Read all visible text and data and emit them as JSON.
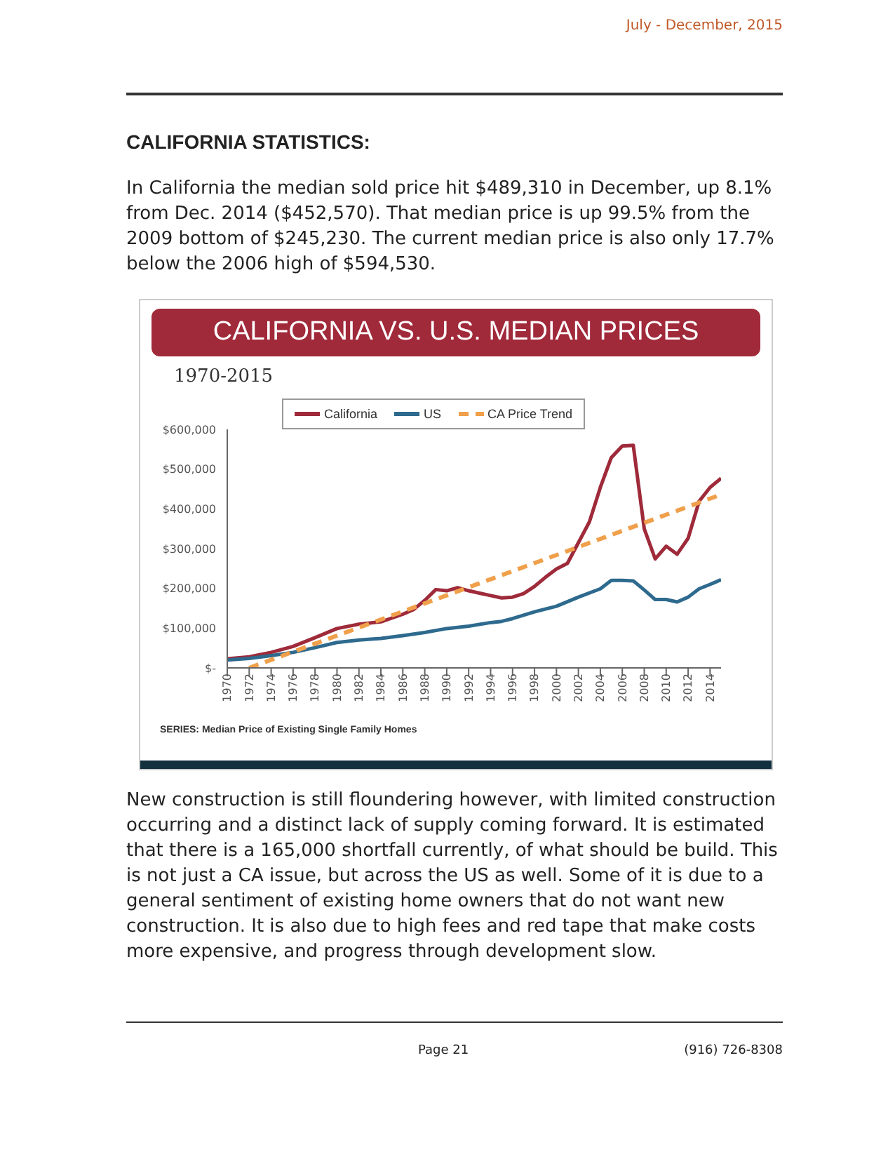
{
  "chart_data": {
    "type": "line",
    "title": "CALIFORNIA VS. U.S. MEDIAN PRICES",
    "subtitle": "1970-2015",
    "annotations": [
      "July - December, 2015",
      "CALIFORNIA STATISTICS:",
      "In California the median sold price hit $489,310 in December, up 8.1% from Dec. 2014 ($452,570).  That median price is up 99.5% from the 2009 bottom of $245,230.  The current median price is also only 17.7% below the 2006 high of $594,530.",
      "SERIES: Median Price of Existing Single Family Homes",
      "New construction is still floundering however, with limited construction occurring and a distinct lack of supply coming forward.  It is estimated that there is a 165,000 shortfall currently, of what should be build.  This is not just a CA issue, but across the US as well.  Some of it is due to a general sentiment of existing home owners that do not want new construction.  It is also due to high fees and red tape that make costs more expensive, and progress through development slow.",
      "Page 21",
      "(916) 726-8308"
    ],
    "series": [
      {
        "name": "California",
        "color": "#9e2a3a",
        "x": [
          1970,
          1972,
          1974,
          1976,
          1978,
          1980,
          1982,
          1984,
          1986,
          1987,
          1988,
          1989,
          1990,
          1991,
          1992,
          1993,
          1994,
          1995,
          1996,
          1997,
          1998,
          1999,
          2000,
          2001,
          2002,
          2003,
          2004,
          2005,
          2006,
          2007,
          2008,
          2009,
          2010,
          2011,
          2012,
          2013,
          2014,
          2015
        ],
        "values": [
          23000,
          28000,
          39000,
          54000,
          76000,
          99000,
          110000,
          116000,
          135000,
          147000,
          170000,
          197000,
          194000,
          202000,
          194000,
          188000,
          182000,
          176000,
          178000,
          187000,
          205000,
          228000,
          249000,
          263000,
          315000,
          367000,
          454000,
          529000,
          558000,
          560000,
          350000,
          274000,
          306000,
          286000,
          326000,
          419000,
          454000,
          477000
        ]
      },
      {
        "name": "US",
        "color": "#2e6a8e",
        "x": [
          1970,
          1972,
          1974,
          1976,
          1978,
          1980,
          1982,
          1984,
          1986,
          1988,
          1990,
          1992,
          1994,
          1995,
          1996,
          1998,
          2000,
          2002,
          2004,
          2005,
          2006,
          2007,
          2008,
          2009,
          2010,
          2011,
          2012,
          2013,
          2014,
          2015
        ],
        "values": [
          20000,
          24000,
          31000,
          39000,
          51000,
          64000,
          70000,
          74000,
          81000,
          89000,
          99000,
          105000,
          114000,
          117000,
          124000,
          141000,
          155000,
          178000,
          199000,
          220000,
          220000,
          219000,
          196000,
          172000,
          172000,
          166000,
          178000,
          199000,
          210000,
          222000
        ]
      },
      {
        "name": "CA Price Trend",
        "color": "#f0a04b",
        "line_style": "dashed",
        "x": [
          1972,
          2015
        ],
        "values": [
          0,
          436000
        ]
      }
    ],
    "xlim": [
      1970,
      2015
    ],
    "xticks": [
      1970,
      1972,
      1974,
      1976,
      1978,
      1980,
      1982,
      1984,
      1986,
      1988,
      1990,
      1992,
      1994,
      1996,
      1998,
      2000,
      2002,
      2004,
      2006,
      2008,
      2010,
      2012,
      2014
    ],
    "ylim": [
      0,
      600000
    ],
    "yticks": [
      {
        "value": 0,
        "label": "$-"
      },
      {
        "value": 100000,
        "label": "$100,000"
      },
      {
        "value": 200000,
        "label": "$200,000"
      },
      {
        "value": 300000,
        "label": "$300,000"
      },
      {
        "value": 400000,
        "label": "$400,000"
      },
      {
        "value": 500000,
        "label": "$500,000"
      },
      {
        "value": 600000,
        "label": "$600,000"
      }
    ],
    "grid": false,
    "legend": "top",
    "marker": "none",
    "line_style": "solid"
  }
}
